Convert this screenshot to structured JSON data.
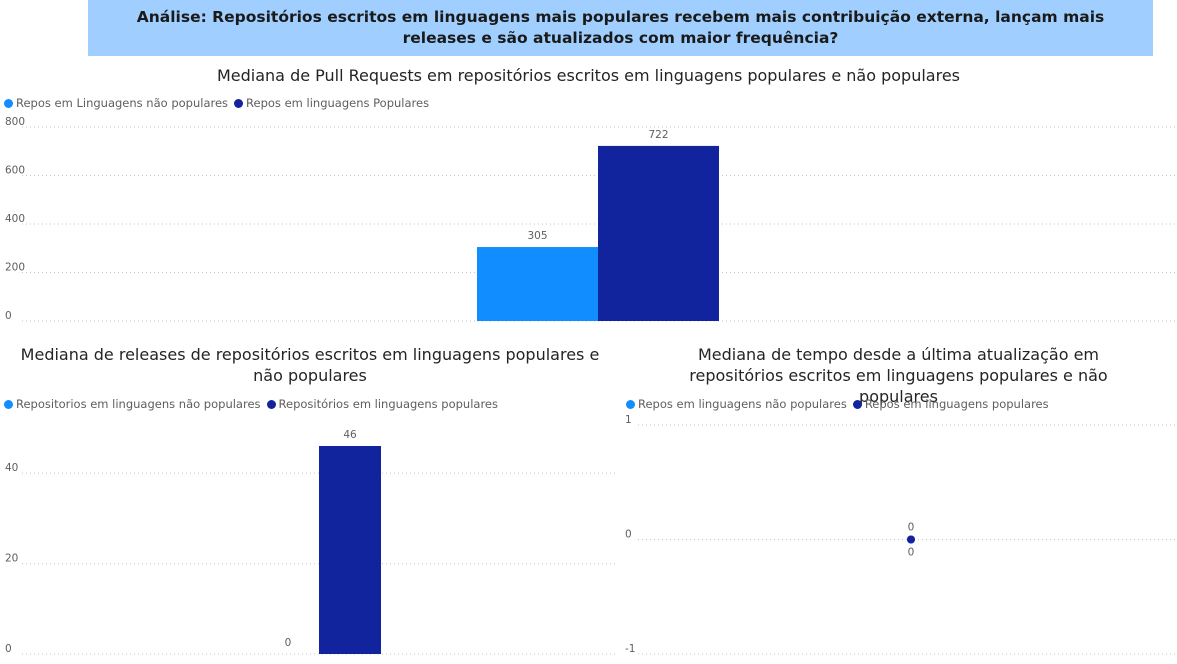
{
  "header": {
    "title": "Análise: Repositórios escritos em linguagens mais populares recebem mais contribuição externa, lançam mais releases e são atualizados com maior frequência?"
  },
  "colors": {
    "non_popular": "#118dff",
    "popular": "#12239e",
    "grid": "#c8c6c4",
    "axis_text": "#605e5c"
  },
  "chart_data": [
    {
      "id": "pull-requests",
      "type": "bar",
      "title": "Mediana de Pull Requests em repositórios escritos em linguagens populares e não populares",
      "legend": [
        "Repos em Linguagens não populares",
        "Repos em linguagens Populares"
      ],
      "series": [
        {
          "name": "Repos em Linguagens não populares",
          "values": [
            305
          ]
        },
        {
          "name": "Repos em linguagens Populares",
          "values": [
            722
          ]
        }
      ],
      "data_labels": [
        "305",
        "722"
      ],
      "ylim": [
        0,
        800
      ],
      "yticks": [
        0,
        200,
        400,
        600,
        800
      ],
      "ytick_labels": [
        "0",
        "200",
        "400",
        "600",
        "800"
      ],
      "grid": true
    },
    {
      "id": "releases",
      "type": "bar",
      "title": "Mediana de releases de repositórios escritos em linguagens populares e não populares",
      "legend": [
        "Repositorios em linguagens não populares",
        "Repositórios em linguagens populares"
      ],
      "series": [
        {
          "name": "Repositorios em linguagens não populares",
          "values": [
            0
          ]
        },
        {
          "name": "Repositórios em linguagens populares",
          "values": [
            46
          ]
        }
      ],
      "data_labels": [
        "0",
        "46"
      ],
      "ylim": [
        0,
        46
      ],
      "yticks": [
        0,
        20,
        40
      ],
      "ytick_labels": [
        "0",
        "20",
        "40"
      ],
      "grid": true
    },
    {
      "id": "last-update",
      "type": "scatter",
      "title": "Mediana de tempo desde a última atualização em repositórios escritos em linguagens populares e não populares",
      "legend": [
        "Repos em linguagens não populares",
        "Repos em linguagens populares"
      ],
      "series": [
        {
          "name": "Repos em linguagens não populares",
          "values": [
            0
          ]
        },
        {
          "name": "Repos em linguagens populares",
          "values": [
            0
          ]
        }
      ],
      "data_labels": [
        "0",
        "0"
      ],
      "ylim": [
        -1,
        1
      ],
      "yticks": [
        -1,
        0,
        1
      ],
      "ytick_labels": [
        "-1",
        "0",
        "1"
      ],
      "grid": true
    }
  ]
}
